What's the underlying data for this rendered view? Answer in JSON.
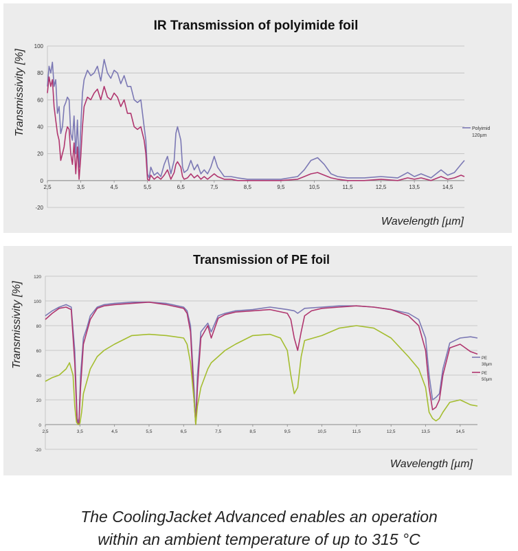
{
  "caption": {
    "line1": "The CoolingJacket Advanced enables an operation",
    "line2": "within an ambient temperature of up to 315 °C"
  },
  "chart_data": [
    {
      "type": "line",
      "title": "IR Transmission of polyimide foil",
      "xlabel": "Wavelength [µm]",
      "ylabel": "Transmissivity [%]",
      "xlim": [
        2.5,
        15
      ],
      "ylim": [
        -20,
        100
      ],
      "x_ticks": [
        "2,5",
        "3,5",
        "4,5",
        "5,5",
        "6,5",
        "7,5",
        "8,5",
        "9,5",
        "10,5",
        "11,5",
        "12,5",
        "13,5",
        "14,5"
      ],
      "y_ticks": [
        "-20",
        "0",
        "20",
        "40",
        "60",
        "80",
        "100"
      ],
      "grid": "horizontal",
      "legend": [
        "Polyimid",
        "120µm"
      ],
      "legend_position": "right",
      "series": [
        {
          "color": "#7b78b4",
          "x": [
            2.5,
            2.55,
            2.6,
            2.65,
            2.7,
            2.75,
            2.8,
            2.85,
            2.9,
            2.95,
            3.0,
            3.05,
            3.1,
            3.15,
            3.2,
            3.25,
            3.3,
            3.35,
            3.4,
            3.45,
            3.5,
            3.55,
            3.6,
            3.7,
            3.8,
            3.9,
            4.0,
            4.1,
            4.2,
            4.3,
            4.4,
            4.5,
            4.6,
            4.7,
            4.8,
            4.9,
            5.0,
            5.1,
            5.2,
            5.3,
            5.4,
            5.45,
            5.5,
            5.55,
            5.6,
            5.7,
            5.8,
            5.9,
            6.0,
            6.1,
            6.2,
            6.3,
            6.35,
            6.4,
            6.5,
            6.55,
            6.6,
            6.7,
            6.8,
            6.9,
            7.0,
            7.1,
            7.2,
            7.3,
            7.4,
            7.5,
            7.6,
            7.8,
            8.0,
            8.2,
            8.5,
            9.0,
            9.5,
            10.0,
            10.2,
            10.4,
            10.6,
            10.8,
            11.0,
            11.2,
            11.5,
            12.0,
            12.5,
            13.0,
            13.3,
            13.5,
            13.7,
            14.0,
            14.3,
            14.5,
            14.7,
            14.9,
            15.0
          ],
          "y": [
            70,
            85,
            80,
            88,
            70,
            75,
            50,
            55,
            35,
            40,
            55,
            58,
            62,
            60,
            35,
            30,
            48,
            20,
            45,
            10,
            40,
            65,
            75,
            82,
            78,
            80,
            85,
            74,
            90,
            80,
            76,
            82,
            80,
            72,
            78,
            70,
            70,
            60,
            58,
            60,
            40,
            30,
            5,
            2,
            10,
            4,
            6,
            3,
            12,
            18,
            5,
            15,
            35,
            40,
            30,
            10,
            6,
            8,
            15,
            8,
            12,
            5,
            8,
            5,
            10,
            18,
            10,
            3,
            3,
            2,
            1,
            1,
            1,
            3,
            8,
            15,
            17,
            12,
            5,
            3,
            2,
            2,
            3,
            2,
            6,
            3,
            5,
            2,
            8,
            4,
            6,
            12,
            15
          ]
        },
        {
          "color": "#b0356e",
          "x": [
            2.5,
            2.55,
            2.6,
            2.65,
            2.7,
            2.75,
            2.8,
            2.85,
            2.9,
            2.95,
            3.0,
            3.05,
            3.1,
            3.15,
            3.2,
            3.25,
            3.3,
            3.35,
            3.4,
            3.45,
            3.5,
            3.55,
            3.6,
            3.7,
            3.8,
            3.9,
            4.0,
            4.1,
            4.2,
            4.3,
            4.4,
            4.5,
            4.6,
            4.7,
            4.8,
            4.9,
            5.0,
            5.1,
            5.2,
            5.3,
            5.4,
            5.45,
            5.5,
            5.55,
            5.6,
            5.7,
            5.8,
            5.9,
            6.0,
            6.1,
            6.2,
            6.3,
            6.35,
            6.4,
            6.5,
            6.55,
            6.6,
            6.7,
            6.8,
            6.9,
            7.0,
            7.1,
            7.2,
            7.3,
            7.4,
            7.5,
            7.6,
            7.8,
            8.0,
            8.2,
            8.5,
            9.0,
            9.5,
            10.0,
            10.2,
            10.4,
            10.6,
            10.8,
            11.0,
            11.2,
            11.5,
            12.0,
            12.5,
            13.0,
            13.3,
            13.5,
            13.7,
            14.0,
            14.3,
            14.5,
            14.7,
            14.9,
            15.0
          ],
          "y": [
            65,
            77,
            70,
            75,
            55,
            45,
            35,
            30,
            15,
            20,
            25,
            35,
            40,
            38,
            20,
            12,
            28,
            5,
            25,
            1,
            18,
            40,
            55,
            62,
            60,
            65,
            68,
            60,
            70,
            62,
            60,
            65,
            62,
            55,
            60,
            50,
            50,
            40,
            38,
            40,
            30,
            20,
            1,
            0,
            4,
            1,
            3,
            1,
            4,
            8,
            1,
            6,
            12,
            14,
            10,
            3,
            1,
            2,
            5,
            2,
            4,
            1,
            3,
            1,
            3,
            5,
            3,
            1,
            1,
            0,
            0,
            0,
            0,
            1,
            3,
            5,
            6,
            4,
            2,
            1,
            0,
            0,
            1,
            0,
            2,
            1,
            2,
            0,
            3,
            1,
            2,
            4,
            3
          ]
        }
      ]
    },
    {
      "type": "line",
      "title": "Transmission of PE foil",
      "xlabel": "Wavelength [µm]",
      "ylabel": "Transmissivity [%]",
      "xlim": [
        2.5,
        15
      ],
      "ylim": [
        -20,
        120
      ],
      "x_ticks": [
        "2,5",
        "3,5",
        "4,5",
        "5,5",
        "6,5",
        "7,5",
        "8,5",
        "9,5",
        "10,5",
        "11,5",
        "12,5",
        "13,5",
        "14,5"
      ],
      "y_ticks": [
        "-20",
        "0",
        "20",
        "40",
        "60",
        "80",
        "100",
        "120"
      ],
      "grid": "horizontal",
      "legend": [
        "PE",
        "38µm",
        "PE",
        "50µm"
      ],
      "legend_position": "right",
      "series": [
        {
          "color": "#7b78b4",
          "x": [
            2.5,
            2.7,
            2.9,
            3.1,
            3.25,
            3.35,
            3.42,
            3.47,
            3.52,
            3.6,
            3.7,
            3.8,
            4.0,
            4.2,
            4.5,
            5.0,
            5.5,
            6.0,
            6.5,
            6.6,
            6.7,
            6.8,
            6.85,
            6.9,
            7.0,
            7.2,
            7.3,
            7.5,
            7.7,
            8.0,
            8.5,
            9.0,
            9.5,
            9.7,
            9.8,
            9.9,
            10.0,
            10.5,
            11.0,
            11.5,
            12.0,
            12.5,
            13.0,
            13.3,
            13.5,
            13.6,
            13.7,
            13.8,
            13.9,
            14.0,
            14.2,
            14.5,
            14.8,
            15.0
          ],
          "y": [
            88,
            92,
            95,
            97,
            95,
            60,
            5,
            1,
            40,
            70,
            78,
            88,
            95,
            97,
            98,
            99,
            99,
            98,
            95,
            92,
            80,
            30,
            2,
            40,
            75,
            82,
            75,
            88,
            90,
            92,
            93,
            95,
            93,
            92,
            90,
            92,
            94,
            95,
            96,
            96,
            95,
            93,
            90,
            85,
            70,
            40,
            20,
            22,
            25,
            45,
            66,
            70,
            71,
            70
          ]
        },
        {
          "color": "#b0356e",
          "x": [
            2.5,
            2.7,
            2.9,
            3.1,
            3.25,
            3.35,
            3.42,
            3.47,
            3.52,
            3.6,
            3.7,
            3.8,
            4.0,
            4.2,
            4.5,
            5.0,
            5.5,
            6.0,
            6.5,
            6.6,
            6.7,
            6.8,
            6.85,
            6.9,
            7.0,
            7.2,
            7.3,
            7.5,
            7.7,
            8.0,
            8.5,
            9.0,
            9.5,
            9.6,
            9.7,
            9.8,
            9.9,
            10.0,
            10.2,
            10.5,
            11.0,
            11.5,
            12.0,
            12.5,
            13.0,
            13.3,
            13.5,
            13.6,
            13.7,
            13.8,
            13.9,
            14.0,
            14.2,
            14.5,
            14.8,
            15.0
          ],
          "y": [
            85,
            90,
            94,
            95,
            93,
            50,
            2,
            0,
            30,
            65,
            75,
            85,
            94,
            96,
            97,
            98,
            99,
            97,
            94,
            90,
            75,
            20,
            0,
            30,
            70,
            80,
            70,
            86,
            89,
            91,
            92,
            93,
            90,
            85,
            70,
            60,
            75,
            88,
            92,
            94,
            95,
            96,
            95,
            93,
            88,
            80,
            60,
            30,
            12,
            14,
            20,
            40,
            62,
            65,
            59,
            57
          ]
        },
        {
          "color": "#a4bd2f",
          "x": [
            2.5,
            2.7,
            2.9,
            3.1,
            3.2,
            3.3,
            3.35,
            3.4,
            3.45,
            3.5,
            3.55,
            3.6,
            3.7,
            3.8,
            4.0,
            4.2,
            4.5,
            5.0,
            5.5,
            6.0,
            6.5,
            6.6,
            6.7,
            6.8,
            6.85,
            6.9,
            7.0,
            7.2,
            7.3,
            7.5,
            7.7,
            8.0,
            8.5,
            9.0,
            9.3,
            9.5,
            9.6,
            9.7,
            9.8,
            9.9,
            10.0,
            10.5,
            11.0,
            11.5,
            12.0,
            12.5,
            13.0,
            13.3,
            13.5,
            13.6,
            13.7,
            13.8,
            13.9,
            14.0,
            14.2,
            14.5,
            14.8,
            15.0
          ],
          "y": [
            35,
            38,
            40,
            45,
            50,
            40,
            15,
            2,
            0,
            1,
            10,
            25,
            35,
            45,
            55,
            60,
            65,
            72,
            73,
            72,
            70,
            65,
            50,
            20,
            0,
            15,
            30,
            45,
            50,
            55,
            60,
            65,
            72,
            73,
            70,
            60,
            40,
            25,
            30,
            55,
            68,
            72,
            78,
            80,
            78,
            70,
            55,
            45,
            30,
            10,
            5,
            3,
            5,
            10,
            18,
            20,
            16,
            15
          ]
        }
      ]
    }
  ]
}
